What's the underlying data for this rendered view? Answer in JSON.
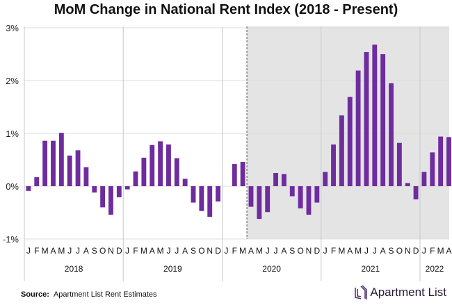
{
  "chart_data": {
    "type": "bar",
    "title": "MoM Change in National Rent Index (2018 - Present)",
    "ylim": [
      -1,
      3
    ],
    "yticks": [
      "-1%",
      "0%",
      "1%",
      "2%",
      "3%"
    ],
    "ytick_values": [
      -1,
      0,
      1,
      2,
      3
    ],
    "grid": true,
    "years": [
      "2018",
      "2019",
      "2020",
      "2021",
      "2022"
    ],
    "month_labels": [
      "J",
      "F",
      "M",
      "A",
      "M",
      "J",
      "J",
      "A",
      "S",
      "O",
      "N",
      "D"
    ],
    "values": [
      -0.09,
      0.17,
      0.86,
      0.86,
      1.01,
      0.58,
      0.68,
      0.36,
      -0.12,
      -0.4,
      -0.54,
      -0.21,
      -0.06,
      0.28,
      0.54,
      0.78,
      0.85,
      0.79,
      0.53,
      0.14,
      -0.31,
      -0.47,
      -0.58,
      -0.29,
      0.0,
      0.42,
      0.46,
      -0.39,
      -0.62,
      -0.49,
      0.25,
      0.23,
      -0.19,
      -0.42,
      -0.54,
      -0.31,
      0.27,
      0.79,
      1.34,
      1.69,
      2.19,
      2.54,
      2.68,
      2.5,
      1.95,
      0.82,
      0.06,
      -0.25,
      0.27,
      0.64,
      0.94,
      0.93
    ],
    "shaded_from": "Apr 2020",
    "bar_color": "#6e2c9e",
    "shade_color": "#e4e4e4"
  },
  "source_label": "Source:",
  "source_text": "Apartment List Rent Estimates",
  "logo_text": "Apartment List"
}
